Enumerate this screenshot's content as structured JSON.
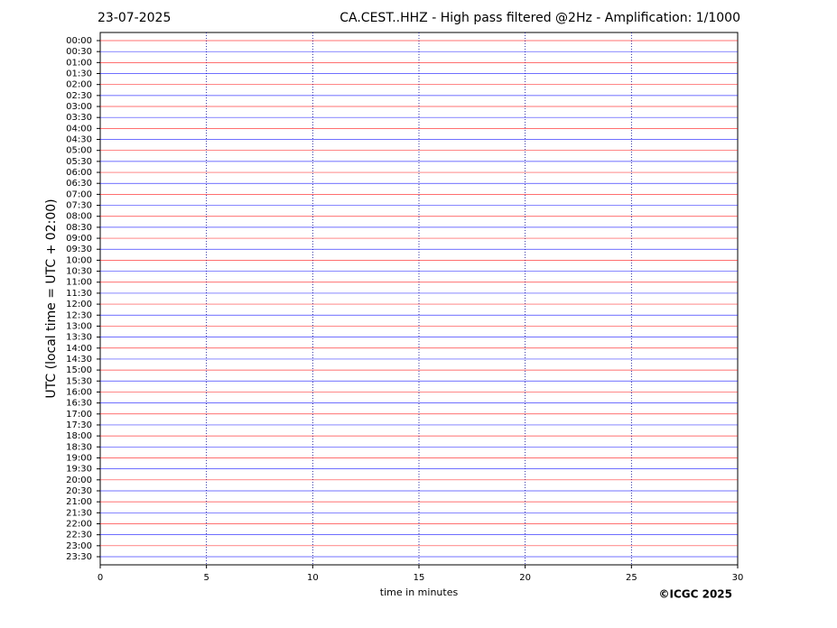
{
  "chart_data": {
    "type": "helicorder",
    "date": "23-07-2025",
    "title": "CA.CEST..HHZ - High pass filtered @2Hz - Amplification: 1/1000",
    "x_label": "time in minutes",
    "y_label": "UTC (local time = UTC + 02:00)",
    "copyright": "©ICGC 2025",
    "categories": [
      "00:00",
      "00:30",
      "01:00",
      "01:30",
      "02:00",
      "02:30",
      "03:00",
      "03:30",
      "04:00",
      "04:30",
      "05:00",
      "05:30",
      "06:00",
      "06:30",
      "07:00",
      "07:30",
      "08:00",
      "08:30",
      "09:00",
      "09:30",
      "10:00",
      "10:30",
      "11:00",
      "11:30",
      "12:00",
      "12:30",
      "13:00",
      "13:30",
      "14:00",
      "14:30",
      "15:00",
      "15:30",
      "16:00",
      "16:30",
      "17:00",
      "17:30",
      "18:00",
      "18:30",
      "19:00",
      "19:30",
      "20:00",
      "20:30",
      "21:00",
      "21:30",
      "22:00",
      "22:30",
      "23:00",
      "23:30"
    ],
    "row_colors": [
      "#ff0000",
      "#0000ff"
    ],
    "xlim": [
      0,
      30
    ],
    "xticks": [
      0,
      5,
      10,
      15,
      20,
      25,
      30
    ],
    "grid": true
  }
}
